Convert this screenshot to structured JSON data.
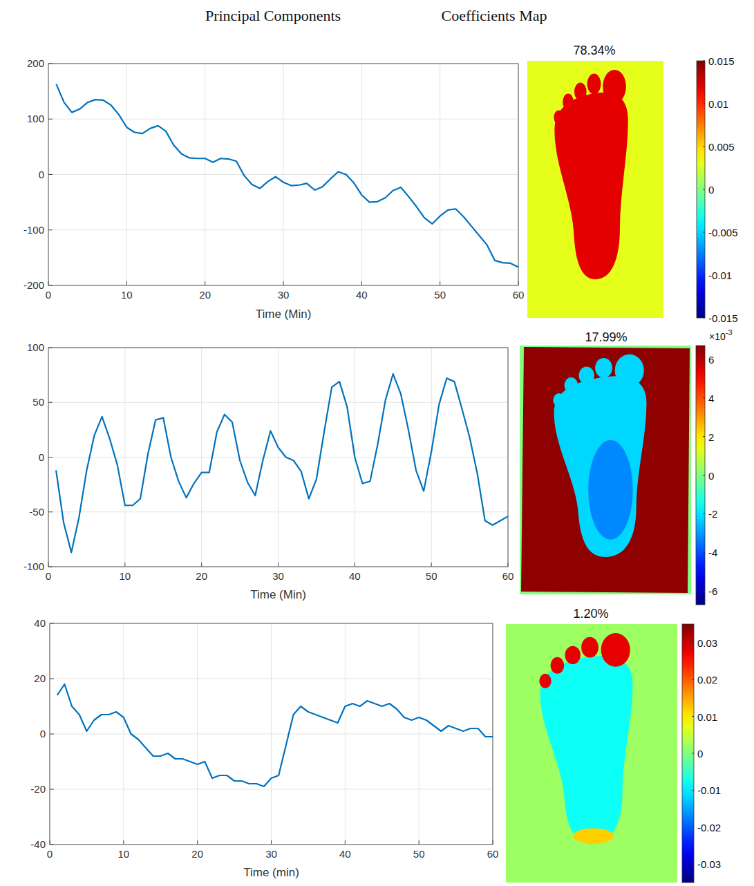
{
  "header": {
    "left": "Principal Components",
    "right": "Coefficients Map"
  },
  "chart_data": [
    {
      "type": "line",
      "x_label": "Time (Min)",
      "x": [
        1,
        2,
        3,
        4,
        5,
        6,
        7,
        8,
        9,
        10,
        11,
        12,
        13,
        14,
        15,
        16,
        17,
        18,
        19,
        20,
        21,
        22,
        23,
        24,
        25,
        26,
        27,
        28,
        29,
        30,
        31,
        32,
        33,
        34,
        35,
        36,
        37,
        38,
        39,
        40,
        41,
        42,
        43,
        44,
        45,
        46,
        47,
        48,
        49,
        50,
        51,
        52,
        53,
        54,
        55,
        56,
        57,
        58,
        59,
        60
      ],
      "series": [
        {
          "color": "#0072bd",
          "values": [
            163,
            130,
            112,
            118,
            130,
            135,
            134,
            125,
            108,
            85,
            76,
            74,
            83,
            88,
            78,
            53,
            37,
            30,
            29,
            29,
            22,
            29,
            28,
            24,
            -2,
            -18,
            -25,
            -13,
            -4,
            -14,
            -20,
            -19,
            -16,
            -28,
            -22,
            -8,
            5,
            0,
            -15,
            -37,
            -50,
            -49,
            -42,
            -29,
            -23,
            -40,
            -58,
            -78,
            -89,
            -75,
            -64,
            -62,
            -76,
            -93,
            -110,
            -127,
            -155,
            -159,
            -160,
            -167
          ]
        }
      ],
      "xlim": [
        0,
        60
      ],
      "xticks": [
        0,
        10,
        20,
        30,
        40,
        50,
        60
      ],
      "ylim": [
        -200,
        200
      ],
      "yticks": [
        -200,
        -100,
        0,
        100,
        200
      ],
      "grid": true,
      "coefficients_map": {
        "title": "78.34%",
        "background": 0.003,
        "foot": 0.012,
        "colorbar_lim": [
          -0.015,
          0.015
        ],
        "colorbar_ticks": [
          0.015,
          0.01,
          0.005,
          0,
          -0.005,
          -0.01,
          -0.015
        ]
      }
    },
    {
      "type": "line",
      "x_label": "Time (Min)",
      "x": [
        1,
        2,
        3,
        4,
        5,
        6,
        7,
        8,
        9,
        10,
        11,
        12,
        13,
        14,
        15,
        16,
        17,
        18,
        19,
        20,
        21,
        22,
        23,
        24,
        25,
        26,
        27,
        28,
        29,
        30,
        31,
        32,
        33,
        34,
        35,
        36,
        37,
        38,
        39,
        40,
        41,
        42,
        43,
        44,
        45,
        46,
        47,
        48,
        49,
        50,
        51,
        52,
        53,
        54,
        55,
        56,
        57,
        58,
        59,
        60
      ],
      "series": [
        {
          "color": "#0072bd",
          "values": [
            -12,
            -60,
            -87,
            -55,
            -12,
            20,
            37,
            17,
            -7,
            -44,
            -44,
            -38,
            3,
            34,
            36,
            0,
            -22,
            -37,
            -24,
            -14,
            -14,
            23,
            39,
            32,
            -3,
            -23,
            -35,
            -3,
            24,
            9,
            0,
            -3,
            -13,
            -38,
            -20,
            23,
            64,
            69,
            46,
            0,
            -24,
            -22,
            12,
            52,
            76,
            58,
            25,
            -12,
            -31,
            5,
            48,
            72,
            69,
            44,
            18,
            -15,
            -58,
            -62,
            -58,
            -54
          ]
        }
      ],
      "xlim": [
        0,
        60
      ],
      "xticks": [
        0,
        10,
        20,
        30,
        40,
        50,
        60
      ],
      "ylim": [
        -100,
        100
      ],
      "yticks": [
        -100,
        -50,
        0,
        50,
        100
      ],
      "grid": true,
      "coefficients_map": {
        "title": "17.99%",
        "border": 0,
        "background": 6.5,
        "foot": -2.2,
        "arch": -3.5,
        "colorbar_lim": [
          -6.7,
          6.7
        ],
        "colorbar_ticks": [
          6,
          4,
          2,
          0,
          -2,
          -4,
          -6
        ],
        "multiplier_base": "×10",
        "multiplier_exponent": "-3"
      }
    },
    {
      "type": "line",
      "x_label": "Time (min)",
      "x": [
        1,
        2,
        3,
        4,
        5,
        6,
        7,
        8,
        9,
        10,
        11,
        12,
        13,
        14,
        15,
        16,
        17,
        18,
        19,
        20,
        21,
        22,
        23,
        24,
        25,
        26,
        27,
        28,
        29,
        30,
        31,
        32,
        33,
        34,
        35,
        36,
        37,
        38,
        39,
        40,
        41,
        42,
        43,
        44,
        45,
        46,
        47,
        48,
        49,
        50,
        51,
        52,
        53,
        54,
        55,
        56,
        57,
        58,
        59,
        60
      ],
      "series": [
        {
          "color": "#0072bd",
          "values": [
            14,
            18,
            10,
            7,
            1,
            5,
            7,
            7,
            8,
            6,
            0,
            -2,
            -5,
            -8,
            -8,
            -7,
            -9,
            -9,
            -10,
            -11,
            -10,
            -16,
            -15,
            -15,
            -17,
            -17,
            -18,
            -18,
            -19,
            -16,
            -15,
            -4,
            7,
            10,
            8,
            7,
            6,
            5,
            4,
            10,
            11,
            10,
            12,
            11,
            10,
            11,
            9,
            6,
            5,
            6,
            5,
            3,
            1,
            3,
            2,
            1,
            2,
            2,
            -1,
            -1
          ]
        }
      ],
      "xlim": [
        0,
        60
      ],
      "xticks": [
        0,
        10,
        20,
        30,
        40,
        50,
        60
      ],
      "ylim": [
        -40,
        40
      ],
      "yticks": [
        -40,
        -20,
        0,
        20,
        40
      ],
      "grid": true,
      "coefficients_map": {
        "title": "1.20%",
        "background": 0.002,
        "foot": -0.008,
        "toes": 0.028,
        "heel": 0.012,
        "colorbar_lim": [
          -0.035,
          0.035
        ],
        "colorbar_ticks": [
          0.03,
          0.02,
          0.01,
          0,
          -0.01,
          -0.02,
          -0.03
        ]
      }
    }
  ]
}
